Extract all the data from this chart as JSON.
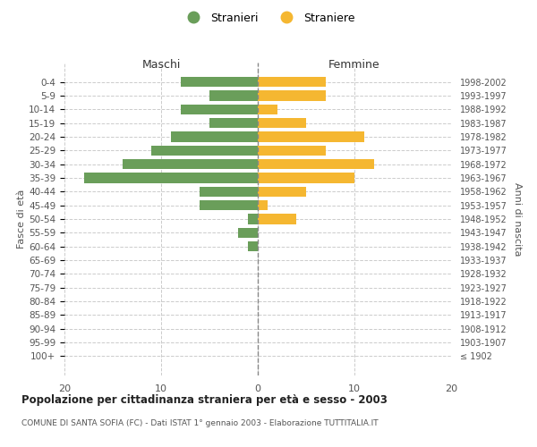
{
  "age_groups": [
    "100+",
    "95-99",
    "90-94",
    "85-89",
    "80-84",
    "75-79",
    "70-74",
    "65-69",
    "60-64",
    "55-59",
    "50-54",
    "45-49",
    "40-44",
    "35-39",
    "30-34",
    "25-29",
    "20-24",
    "15-19",
    "10-14",
    "5-9",
    "0-4"
  ],
  "birth_years": [
    "≤ 1902",
    "1903-1907",
    "1908-1912",
    "1913-1917",
    "1918-1922",
    "1923-1927",
    "1928-1932",
    "1933-1937",
    "1938-1942",
    "1943-1947",
    "1948-1952",
    "1953-1957",
    "1958-1962",
    "1963-1967",
    "1968-1972",
    "1973-1977",
    "1978-1982",
    "1983-1987",
    "1988-1992",
    "1993-1997",
    "1998-2002"
  ],
  "maschi": [
    0,
    0,
    0,
    0,
    0,
    0,
    0,
    0,
    1,
    2,
    1,
    6,
    6,
    18,
    14,
    11,
    9,
    5,
    8,
    5,
    8
  ],
  "femmine": [
    0,
    0,
    0,
    0,
    0,
    0,
    0,
    0,
    0,
    0,
    4,
    1,
    5,
    10,
    12,
    7,
    11,
    5,
    2,
    7,
    7
  ],
  "color_maschi": "#6a9e5a",
  "color_femmine": "#f5b731",
  "xlim": 20,
  "title": "Popolazione per cittadinanza straniera per età e sesso - 2003",
  "subtitle": "COMUNE DI SANTA SOFIA (FC) - Dati ISTAT 1° gennaio 2003 - Elaborazione TUTTITALIA.IT",
  "ylabel_left": "Fasce di età",
  "ylabel_right": "Anni di nascita",
  "label_maschi": "Stranieri",
  "label_femmine": "Straniere",
  "header_maschi": "Maschi",
  "header_femmine": "Femmine",
  "bg_color": "#ffffff"
}
